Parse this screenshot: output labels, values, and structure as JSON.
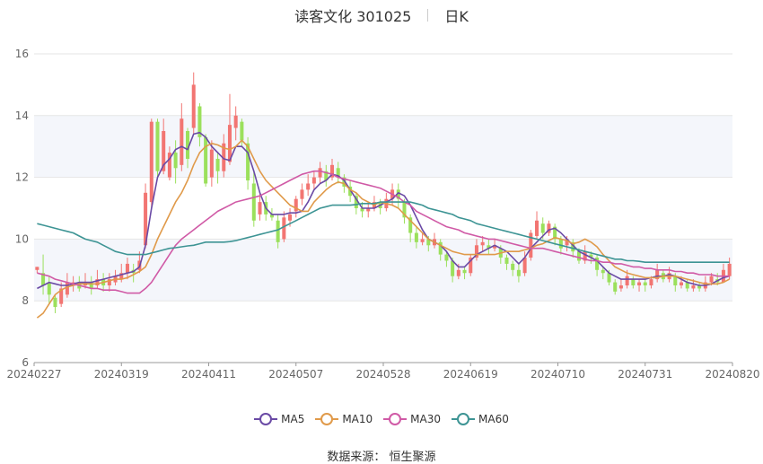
{
  "header": {
    "title": "读客文化 301025",
    "period": "日K"
  },
  "source": "数据来源：  恒生聚源",
  "colors": {
    "up": "#f27572",
    "down": "#9be05c",
    "grid": "#e6e6e6",
    "band": "#f4f6fb"
  },
  "chart_data": {
    "type": "candlestick",
    "ylim": [
      6,
      16
    ],
    "yticks": [
      "6",
      "8",
      "10",
      "12",
      "14",
      "16"
    ],
    "xticks": [
      "20240227",
      "20240319",
      "20240411",
      "20240507",
      "20240528",
      "20240619",
      "20240710",
      "20240731",
      "20240820"
    ],
    "series": [
      {
        "name": "MA5",
        "color": "#6a4aa5",
        "values": [
          8.4,
          8.5,
          8.6,
          8.55,
          8.5,
          8.5,
          8.55,
          8.6,
          8.6,
          8.6,
          8.65,
          8.7,
          8.75,
          8.8,
          8.85,
          8.9,
          8.95,
          9.1,
          9.8,
          11.0,
          12.0,
          12.4,
          12.6,
          12.9,
          13.0,
          12.9,
          13.4,
          13.45,
          13.3,
          13.0,
          12.8,
          12.6,
          12.55,
          13.0,
          13.0,
          12.8,
          12.2,
          11.5,
          11.0,
          10.8,
          10.8,
          10.8,
          10.85,
          10.85,
          10.9,
          11.2,
          11.6,
          11.8,
          11.9,
          12.1,
          12.05,
          11.9,
          11.6,
          11.3,
          11.0,
          11.0,
          11.0,
          11.1,
          11.2,
          11.3,
          11.5,
          11.4,
          11.1,
          10.7,
          10.3,
          10.0,
          9.9,
          9.8,
          9.6,
          9.3,
          9.1,
          9.1,
          9.3,
          9.5,
          9.6,
          9.7,
          9.8,
          9.7,
          9.6,
          9.4,
          9.2,
          9.4,
          9.7,
          9.9,
          10.1,
          10.3,
          10.35,
          10.2,
          10.0,
          9.8,
          9.6,
          9.5,
          9.4,
          9.3,
          9.1,
          8.9,
          8.8,
          8.7,
          8.7,
          8.7,
          8.7,
          8.7,
          8.75,
          8.8,
          8.8,
          8.85,
          8.8,
          8.7,
          8.6,
          8.55,
          8.5,
          8.5,
          8.55,
          8.65,
          8.75,
          8.8
        ]
      },
      {
        "name": "MA10",
        "color": "#e09a4a",
        "values": [
          7.45,
          7.6,
          7.9,
          8.2,
          8.35,
          8.45,
          8.5,
          8.55,
          8.55,
          8.55,
          8.55,
          8.6,
          8.65,
          8.7,
          8.7,
          8.75,
          8.85,
          8.95,
          9.1,
          9.5,
          10.0,
          10.4,
          10.8,
          11.2,
          11.5,
          11.9,
          12.4,
          12.8,
          13.0,
          13.1,
          13.05,
          12.95,
          12.9,
          13.0,
          13.2,
          13.0,
          12.6,
          12.2,
          11.9,
          11.7,
          11.5,
          11.3,
          11.1,
          11.0,
          10.9,
          10.9,
          11.2,
          11.4,
          11.6,
          11.75,
          11.85,
          11.8,
          11.6,
          11.5,
          11.3,
          11.2,
          11.1,
          11.2,
          11.15,
          11.1,
          11.0,
          10.8,
          10.6,
          10.4,
          10.2,
          10.0,
          9.9,
          9.8,
          9.7,
          9.6,
          9.55,
          9.5,
          9.5,
          9.5,
          9.5,
          9.5,
          9.5,
          9.55,
          9.6,
          9.6,
          9.6,
          9.65,
          9.7,
          9.8,
          9.85,
          9.95,
          10.05,
          10.0,
          9.95,
          9.85,
          9.9,
          10.0,
          9.9,
          9.75,
          9.5,
          9.3,
          9.1,
          9.0,
          8.9,
          8.85,
          8.8,
          8.75,
          8.75,
          8.75,
          8.8,
          8.8,
          8.8,
          8.75,
          8.7,
          8.65,
          8.6,
          8.55,
          8.55,
          8.55,
          8.6,
          8.7
        ]
      },
      {
        "name": "MA30",
        "color": "#d05aa6",
        "values": [
          8.9,
          8.85,
          8.8,
          8.7,
          8.65,
          8.6,
          8.55,
          8.5,
          8.45,
          8.4,
          8.4,
          8.35,
          8.35,
          8.35,
          8.3,
          8.25,
          8.25,
          8.25,
          8.4,
          8.6,
          8.9,
          9.2,
          9.5,
          9.8,
          10.0,
          10.15,
          10.3,
          10.45,
          10.6,
          10.75,
          10.9,
          11.0,
          11.1,
          11.2,
          11.25,
          11.3,
          11.35,
          11.4,
          11.5,
          11.6,
          11.7,
          11.8,
          11.9,
          12.0,
          12.1,
          12.15,
          12.2,
          12.2,
          12.15,
          12.1,
          12.0,
          11.95,
          11.9,
          11.85,
          11.8,
          11.75,
          11.7,
          11.65,
          11.55,
          11.45,
          11.35,
          11.2,
          11.1,
          10.9,
          10.8,
          10.7,
          10.6,
          10.5,
          10.4,
          10.35,
          10.3,
          10.2,
          10.15,
          10.1,
          10.05,
          10.0,
          10.0,
          9.95,
          9.9,
          9.85,
          9.8,
          9.75,
          9.7,
          9.7,
          9.7,
          9.65,
          9.6,
          9.55,
          9.5,
          9.45,
          9.4,
          9.35,
          9.3,
          9.3,
          9.25,
          9.25,
          9.2,
          9.2,
          9.15,
          9.1,
          9.1,
          9.05,
          9.05,
          9.0,
          9.0,
          9.0,
          8.95,
          8.95,
          8.9,
          8.9,
          8.85,
          8.85,
          8.85,
          8.8,
          8.8,
          8.8
        ]
      },
      {
        "name": "MA60",
        "color": "#3d9494",
        "values": [
          10.5,
          10.45,
          10.4,
          10.35,
          10.3,
          10.25,
          10.2,
          10.1,
          10.0,
          9.95,
          9.9,
          9.8,
          9.7,
          9.6,
          9.55,
          9.5,
          9.5,
          9.5,
          9.5,
          9.55,
          9.6,
          9.65,
          9.7,
          9.72,
          9.75,
          9.78,
          9.8,
          9.85,
          9.9,
          9.9,
          9.9,
          9.9,
          9.92,
          9.95,
          10.0,
          10.05,
          10.1,
          10.15,
          10.2,
          10.25,
          10.3,
          10.4,
          10.5,
          10.6,
          10.7,
          10.8,
          10.9,
          11.0,
          11.05,
          11.1,
          11.1,
          11.1,
          11.1,
          11.12,
          11.15,
          11.15,
          11.15,
          11.2,
          11.2,
          11.2,
          11.2,
          11.2,
          11.2,
          11.15,
          11.1,
          11.0,
          10.95,
          10.9,
          10.85,
          10.8,
          10.7,
          10.65,
          10.6,
          10.5,
          10.45,
          10.4,
          10.35,
          10.3,
          10.25,
          10.2,
          10.15,
          10.1,
          10.05,
          10.0,
          9.95,
          9.9,
          9.85,
          9.8,
          9.75,
          9.7,
          9.65,
          9.6,
          9.55,
          9.5,
          9.45,
          9.4,
          9.35,
          9.35,
          9.3,
          9.3,
          9.28,
          9.25,
          9.25,
          9.25,
          9.25,
          9.25,
          9.25,
          9.25,
          9.25,
          9.25,
          9.25,
          9.25,
          9.25,
          9.25,
          9.25,
          9.25
        ]
      }
    ],
    "ohlc": [
      [
        9.0,
        9.1,
        8.9,
        9.1
      ],
      [
        8.9,
        8.5,
        8.2,
        9.5
      ],
      [
        8.6,
        8.2,
        7.9,
        8.8
      ],
      [
        8.1,
        7.8,
        7.6,
        8.2
      ],
      [
        7.9,
        8.4,
        7.8,
        8.6
      ],
      [
        8.2,
        8.6,
        8.1,
        8.9
      ],
      [
        8.5,
        8.6,
        8.3,
        8.8
      ],
      [
        8.6,
        8.4,
        8.3,
        8.8
      ],
      [
        8.5,
        8.6,
        8.4,
        8.9
      ],
      [
        8.6,
        8.4,
        8.2,
        8.8
      ],
      [
        8.5,
        8.7,
        8.4,
        9.0
      ],
      [
        8.7,
        8.5,
        8.3,
        8.9
      ],
      [
        8.5,
        8.7,
        8.3,
        8.9
      ],
      [
        8.6,
        8.8,
        8.5,
        9.0
      ],
      [
        8.7,
        8.9,
        8.6,
        9.2
      ],
      [
        8.9,
        9.2,
        8.7,
        9.4
      ],
      [
        9.0,
        8.9,
        8.6,
        9.2
      ],
      [
        9.0,
        9.3,
        8.9,
        9.6
      ],
      [
        9.8,
        11.5,
        9.7,
        11.8
      ],
      [
        11.2,
        13.8,
        11.0,
        13.9
      ],
      [
        13.8,
        12.2,
        12.0,
        13.9
      ],
      [
        12.2,
        13.5,
        12.1,
        13.9
      ],
      [
        12.0,
        12.8,
        11.9,
        13.0
      ],
      [
        12.8,
        12.3,
        11.8,
        13.2
      ],
      [
        12.4,
        13.9,
        12.2,
        14.4
      ],
      [
        13.5,
        12.6,
        12.3,
        13.6
      ],
      [
        13.6,
        15.0,
        13.4,
        15.4
      ],
      [
        14.3,
        13.3,
        13.0,
        14.4
      ],
      [
        13.3,
        11.8,
        11.7,
        13.4
      ],
      [
        12.0,
        12.9,
        11.7,
        13.2
      ],
      [
        12.6,
        12.2,
        11.8,
        12.8
      ],
      [
        12.2,
        13.1,
        12.0,
        13.4
      ],
      [
        12.5,
        13.7,
        12.4,
        14.7
      ],
      [
        13.6,
        14.0,
        13.2,
        14.3
      ],
      [
        13.8,
        13.2,
        13.0,
        13.9
      ],
      [
        13.1,
        11.9,
        11.6,
        13.3
      ],
      [
        11.8,
        10.6,
        10.4,
        12.2
      ],
      [
        10.8,
        11.2,
        10.6,
        11.5
      ],
      [
        11.2,
        10.8,
        10.6,
        11.4
      ],
      [
        10.8,
        10.7,
        10.6,
        11.0
      ],
      [
        10.6,
        9.9,
        9.7,
        10.8
      ],
      [
        10.0,
        10.7,
        9.9,
        10.9
      ],
      [
        10.6,
        10.8,
        10.4,
        11.0
      ],
      [
        10.9,
        11.3,
        10.7,
        11.4
      ],
      [
        11.3,
        11.6,
        11.1,
        11.8
      ],
      [
        11.6,
        11.8,
        11.4,
        12.1
      ],
      [
        11.8,
        12.0,
        11.6,
        12.2
      ],
      [
        12.0,
        12.3,
        11.8,
        12.5
      ],
      [
        12.2,
        11.9,
        11.7,
        12.4
      ],
      [
        12.0,
        12.4,
        11.9,
        12.6
      ],
      [
        12.3,
        12.0,
        11.8,
        12.5
      ],
      [
        12.0,
        11.7,
        11.5,
        12.1
      ],
      [
        11.7,
        11.4,
        11.2,
        11.9
      ],
      [
        11.4,
        11.0,
        10.8,
        11.5
      ],
      [
        11.0,
        10.9,
        10.7,
        11.2
      ],
      [
        10.9,
        11.0,
        10.7,
        11.2
      ],
      [
        11.0,
        11.2,
        10.9,
        11.4
      ],
      [
        11.2,
        11.0,
        10.8,
        11.3
      ],
      [
        11.0,
        11.3,
        10.9,
        11.5
      ],
      [
        11.3,
        11.6,
        11.1,
        11.8
      ],
      [
        11.6,
        11.3,
        11.0,
        11.8
      ],
      [
        11.2,
        10.7,
        10.5,
        11.3
      ],
      [
        10.7,
        10.2,
        9.9,
        10.8
      ],
      [
        10.2,
        9.9,
        9.7,
        10.4
      ],
      [
        9.9,
        10.0,
        9.8,
        10.2
      ],
      [
        10.0,
        9.8,
        9.6,
        10.1
      ],
      [
        9.8,
        10.0,
        9.7,
        10.2
      ],
      [
        9.9,
        9.5,
        9.3,
        10.0
      ],
      [
        9.5,
        9.3,
        9.1,
        9.6
      ],
      [
        9.3,
        8.8,
        8.6,
        9.4
      ],
      [
        8.8,
        9.0,
        8.7,
        9.2
      ],
      [
        9.0,
        8.9,
        8.7,
        9.1
      ],
      [
        8.9,
        9.4,
        8.8,
        9.5
      ],
      [
        9.4,
        9.8,
        9.3,
        10.0
      ],
      [
        9.8,
        9.9,
        9.6,
        10.1
      ],
      [
        9.8,
        9.7,
        9.5,
        10.0
      ],
      [
        9.7,
        9.8,
        9.6,
        10.0
      ],
      [
        9.7,
        9.4,
        9.2,
        9.8
      ],
      [
        9.4,
        9.2,
        9.0,
        9.5
      ],
      [
        9.2,
        9.0,
        8.8,
        9.3
      ],
      [
        9.0,
        8.8,
        8.6,
        9.2
      ],
      [
        8.9,
        9.4,
        8.8,
        9.6
      ],
      [
        9.4,
        10.2,
        9.3,
        10.3
      ],
      [
        10.1,
        10.6,
        10.0,
        10.9
      ],
      [
        10.5,
        10.2,
        10.0,
        10.7
      ],
      [
        10.2,
        10.5,
        10.1,
        10.6
      ],
      [
        10.4,
        10.0,
        9.8,
        10.5
      ],
      [
        10.0,
        9.7,
        9.5,
        10.1
      ],
      [
        9.8,
        10.0,
        9.6,
        10.1
      ],
      [
        9.9,
        9.6,
        9.4,
        10.0
      ],
      [
        9.6,
        9.3,
        9.2,
        9.7
      ],
      [
        9.3,
        9.6,
        9.2,
        9.8
      ],
      [
        9.5,
        9.4,
        9.2,
        9.6
      ],
      [
        9.4,
        9.0,
        8.8,
        9.5
      ],
      [
        9.0,
        8.9,
        8.7,
        9.1
      ],
      [
        8.9,
        8.6,
        8.5,
        9.0
      ],
      [
        8.6,
        8.3,
        8.2,
        8.7
      ],
      [
        8.4,
        8.5,
        8.3,
        8.7
      ],
      [
        8.5,
        8.8,
        8.4,
        9.0
      ],
      [
        8.7,
        8.5,
        8.4,
        8.8
      ],
      [
        8.5,
        8.6,
        8.3,
        8.7
      ],
      [
        8.6,
        8.5,
        8.3,
        8.7
      ],
      [
        8.5,
        8.7,
        8.4,
        8.8
      ],
      [
        8.7,
        9.0,
        8.6,
        9.2
      ],
      [
        8.9,
        8.7,
        8.6,
        9.0
      ],
      [
        8.7,
        8.9,
        8.6,
        9.1
      ],
      [
        8.8,
        8.5,
        8.3,
        8.9
      ],
      [
        8.5,
        8.6,
        8.4,
        8.8
      ],
      [
        8.6,
        8.4,
        8.3,
        8.7
      ],
      [
        8.4,
        8.5,
        8.3,
        8.7
      ],
      [
        8.5,
        8.4,
        8.3,
        8.6
      ],
      [
        8.4,
        8.6,
        8.3,
        8.8
      ],
      [
        8.6,
        8.8,
        8.5,
        8.9
      ],
      [
        8.7,
        8.6,
        8.5,
        8.9
      ],
      [
        8.6,
        9.0,
        8.6,
        9.2
      ],
      [
        8.8,
        9.2,
        8.7,
        9.4
      ]
    ]
  },
  "legend": [
    "MA5",
    "MA10",
    "MA30",
    "MA60"
  ]
}
